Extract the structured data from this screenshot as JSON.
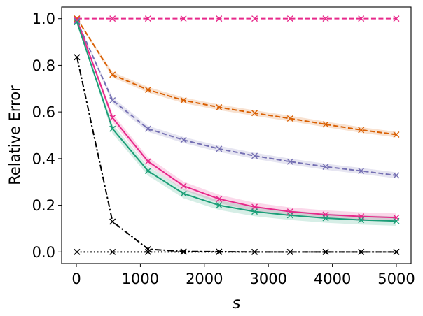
{
  "chart_data": {
    "type": "line",
    "title": "",
    "xlabel": "s",
    "ylabel": "Relative Error",
    "xlim": [
      -230,
      5230
    ],
    "ylim": [
      -0.05,
      1.05
    ],
    "xticks": [
      0,
      1000,
      2000,
      3000,
      4000,
      5000
    ],
    "xtick_labels": [
      "0",
      "1000",
      "2000",
      "3000",
      "4000",
      "5000"
    ],
    "yticks": [
      0.0,
      0.2,
      0.4,
      0.6,
      0.8,
      1.0
    ],
    "ytick_labels": [
      "0.0",
      "0.2",
      "0.4",
      "0.6",
      "0.8",
      "1.0"
    ],
    "grid": false,
    "x": [
      10,
      565,
      1120,
      1675,
      2230,
      2785,
      3340,
      3895,
      4450,
      5000
    ],
    "series": [
      {
        "name": "magenta-dashed",
        "color": "#e7298a",
        "dash": "dashed",
        "values": [
          1.0,
          1.0,
          1.0,
          1.0,
          1.0,
          1.0,
          1.0,
          1.0,
          1.0,
          1.0
        ]
      },
      {
        "name": "orange-dashed",
        "color": "#d95f02",
        "dash": "dashed",
        "values": [
          1.0,
          0.76,
          0.695,
          0.65,
          0.62,
          0.595,
          0.572,
          0.547,
          0.523,
          0.503
        ],
        "band": 0.012
      },
      {
        "name": "purple-dashed",
        "color": "#7570b3",
        "dash": "dashed",
        "values": [
          0.99,
          0.65,
          0.528,
          0.48,
          0.442,
          0.412,
          0.387,
          0.365,
          0.347,
          0.328
        ],
        "band": 0.013
      },
      {
        "name": "pink-solid",
        "color": "#e7298a",
        "dash": "solid",
        "values": [
          0.995,
          0.575,
          0.388,
          0.283,
          0.227,
          0.193,
          0.173,
          0.16,
          0.152,
          0.147
        ],
        "band": 0.018
      },
      {
        "name": "green-solid",
        "color": "#1b9e77",
        "dash": "solid",
        "values": [
          0.985,
          0.528,
          0.347,
          0.25,
          0.2,
          0.173,
          0.157,
          0.145,
          0.137,
          0.132
        ],
        "band": 0.02
      },
      {
        "name": "black-dashdot",
        "color": "#000000",
        "dash": "dashdot",
        "values": [
          0.835,
          0.13,
          0.012,
          0.002,
          0.001,
          0.0,
          0.0,
          0.0,
          0.0,
          0.0
        ]
      },
      {
        "name": "black-dotted",
        "color": "#000000",
        "dash": "dotted",
        "values": [
          0.0,
          0.0,
          0.0,
          0.0,
          0.0,
          0.0,
          0.0,
          0.0,
          0.0,
          0.0
        ]
      }
    ]
  }
}
